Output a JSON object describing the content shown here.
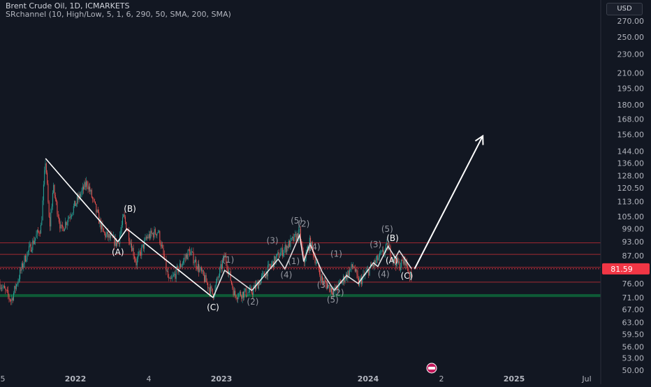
{
  "header": {
    "symbol_line": "Brent Crude Oil, 1D, ICMARKETS",
    "indicator_line": "SRchannel (10, High/Low, 5, 1, 6, 290, 50, SMA, 200, SMA)"
  },
  "currency_button": "USD",
  "colors": {
    "background": "#121722",
    "up_candle": "#26a69a",
    "down_candle": "#ef5350",
    "support_zone": "#0e5a36",
    "resistance_line": "#b22b33",
    "price_tag": "#f23645",
    "arrow": "#ffffff",
    "wave_label": "#9598a1"
  },
  "chart_data": {
    "type": "candlestick",
    "y_scale": "log",
    "y_ticks": [
      "270.00",
      "250.00",
      "230.00",
      "210.00",
      "195.00",
      "180.00",
      "168.00",
      "156.00",
      "144.00",
      "136.00",
      "128.00",
      "120.50",
      "113.00",
      "105.00",
      "99.00",
      "93.00",
      "87.00",
      "81.59",
      "76.00",
      "71.00",
      "67.00",
      "63.00",
      "59.50",
      "56.00",
      "53.00",
      "50.00"
    ],
    "last_price": "81.59",
    "x_ticks": [
      "5",
      "2022",
      "4",
      "2023",
      "2024",
      "2",
      "2025",
      "Jul"
    ],
    "price_path": [
      [
        "2021-11-25",
        76
      ],
      [
        "2021-12-20",
        70
      ],
      [
        "2022-01-20",
        86
      ],
      [
        "2022-02-25",
        100
      ],
      [
        "2022-03-07",
        139
      ],
      [
        "2022-03-16",
        99
      ],
      [
        "2022-03-24",
        121
      ],
      [
        "2022-04-11",
        98
      ],
      [
        "2022-06-08",
        124
      ],
      [
        "2022-07-14",
        97
      ],
      [
        "2022-08-16",
        92
      ],
      [
        "2022-08-29",
        105
      ],
      [
        "2022-09-26",
        84
      ],
      [
        "2022-10-20",
        95
      ],
      [
        "2022-11-14",
        98
      ],
      [
        "2022-12-09",
        76
      ],
      [
        "2023-01-23",
        89
      ],
      [
        "2023-03-17",
        72
      ],
      [
        "2023-04-12",
        87
      ],
      [
        "2023-05-04",
        72
      ],
      [
        "2023-06-12",
        73
      ],
      [
        "2023-08-10",
        87
      ],
      [
        "2023-09-27",
        97
      ],
      [
        "2023-10-06",
        84
      ],
      [
        "2023-10-20",
        93
      ],
      [
        "2023-11-16",
        77
      ],
      [
        "2023-12-13",
        73
      ],
      [
        "2024-01-26",
        83
      ],
      [
        "2024-02-05",
        76
      ],
      [
        "2024-04-12",
        91
      ],
      [
        "2024-04-22",
        86
      ],
      [
        "2024-05-07",
        83
      ],
      [
        "2024-05-20",
        85
      ],
      [
        "2024-06-04",
        77
      ]
    ],
    "zones": {
      "support": [
        71.2,
        72.2
      ],
      "resistance_lines": [
        92.5,
        87.5,
        82.2,
        76.5
      ]
    },
    "projection": {
      "from": [
        "2024-06-10",
        81.5
      ],
      "to": [
        "2024-11-10",
        155
      ]
    },
    "wave_lines": [
      [
        [
          "2022-03-07",
          139
        ],
        [
          "2022-08-16",
          93
        ],
        [
          "2022-09-05",
          99
        ],
        [
          "2023-03-17",
          71
        ]
      ],
      [
        [
          "2023-03-17",
          71
        ],
        [
          "2023-04-12",
          81
        ],
        [
          "2023-06-12",
          73.5
        ],
        [
          "2023-08-10",
          85.5
        ],
        [
          "2023-08-25",
          81.5
        ],
        [
          "2023-09-27",
          96
        ],
        [
          "2023-10-06",
          84.5
        ],
        [
          "2023-10-20",
          92
        ],
        [
          "2023-11-16",
          80.5
        ],
        [
          "2023-12-13",
          73.5
        ]
      ],
      [
        [
          "2023-12-13",
          73.5
        ],
        [
          "2024-01-10",
          79
        ],
        [
          "2024-02-05",
          76
        ],
        [
          "2024-03-10",
          84
        ],
        [
          "2024-03-20",
          82.5
        ],
        [
          "2024-04-12",
          91
        ],
        [
          "2024-04-28",
          86
        ],
        [
          "2024-05-07",
          89
        ],
        [
          "2024-06-04",
          81.5
        ]
      ]
    ],
    "wave_labels": [
      {
        "text": "(A)",
        "date": "2022-08-16",
        "price": 87.3
      },
      {
        "text": "(B)",
        "date": "2022-09-12",
        "price": 107.5
      },
      {
        "text": "(C)",
        "date": "2023-03-17",
        "price": 66.8
      },
      {
        "text": "(1)",
        "date": "2023-04-20",
        "price": 84
      },
      {
        "text": "(2)",
        "date": "2023-06-14",
        "price": 68.7
      },
      {
        "text": "(3)",
        "date": "2023-07-28",
        "price": 92.2
      },
      {
        "text": "(4)",
        "date": "2023-08-28",
        "price": 78.2
      },
      {
        "text": "(5)",
        "date": "2023-09-20",
        "price": 101.5
      },
      {
        "text": "(2)",
        "date": "2023-10-06",
        "price": 100
      },
      {
        "text": "(1)",
        "date": "2023-09-14",
        "price": 83.5
      },
      {
        "text": "(4)",
        "date": "2023-10-30",
        "price": 89.5
      },
      {
        "text": "(1)",
        "date": "2023-12-18",
        "price": 86.5
      },
      {
        "text": "(3)",
        "date": "2023-11-18",
        "price": 74.5
      },
      {
        "text": "(5)",
        "date": "2023-12-10",
        "price": 69.3
      },
      {
        "text": "(2)",
        "date": "2023-12-22",
        "price": 71.7
      },
      {
        "text": "(3)",
        "date": "2024-03-15",
        "price": 90.5
      },
      {
        "text": "(4)",
        "date": "2024-04-02",
        "price": 78.5
      },
      {
        "text": "(5)",
        "date": "2024-04-10",
        "price": 97.5
      },
      {
        "text": "(B)",
        "date": "2024-04-22",
        "price": 93.3
      },
      {
        "text": "(A)",
        "date": "2024-04-20",
        "price": 83.7
      },
      {
        "text": "(C)",
        "date": "2024-05-24",
        "price": 77.8
      }
    ]
  }
}
